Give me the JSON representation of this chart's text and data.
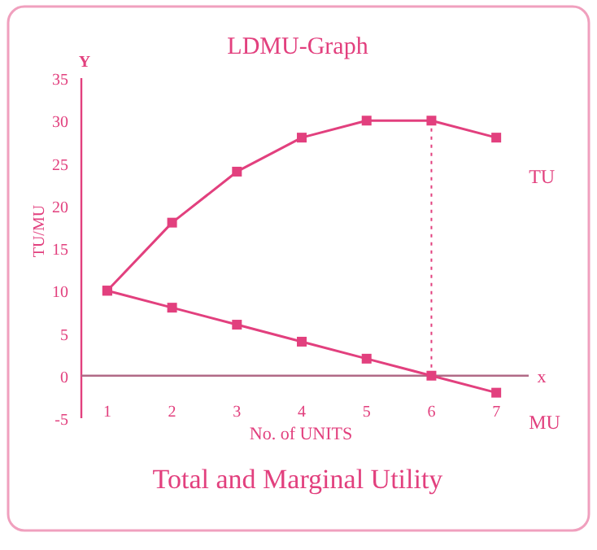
{
  "chart_data": {
    "type": "line",
    "title": "LDMU-Graph",
    "subtitle": "Total and Marginal Utility",
    "xlabel": "No. of UNITS",
    "ylabel": "TU/MU",
    "x": [
      1,
      2,
      3,
      4,
      5,
      6,
      7
    ],
    "series": [
      {
        "name": "TU",
        "color": "#e2407e",
        "values": [
          10,
          18,
          24,
          28,
          30,
          30,
          28
        ]
      },
      {
        "name": "MU",
        "color": "#e2407e",
        "values": [
          10,
          8,
          6,
          4,
          2,
          0,
          -2
        ]
      }
    ],
    "xlim": [
      0.6,
      7.5
    ],
    "xticks": [
      1,
      2,
      3,
      4,
      5,
      6,
      7
    ],
    "ylim": [
      -5,
      35
    ],
    "yticks": [
      -5,
      0,
      5,
      10,
      15,
      20,
      25,
      30,
      35
    ],
    "ref_lines": [
      {
        "axis": "x",
        "value": 6,
        "line_style": "dotted"
      }
    ],
    "annotations": [
      "Y",
      "x"
    ],
    "marker": "square",
    "line_style": "solid",
    "grid": false
  }
}
